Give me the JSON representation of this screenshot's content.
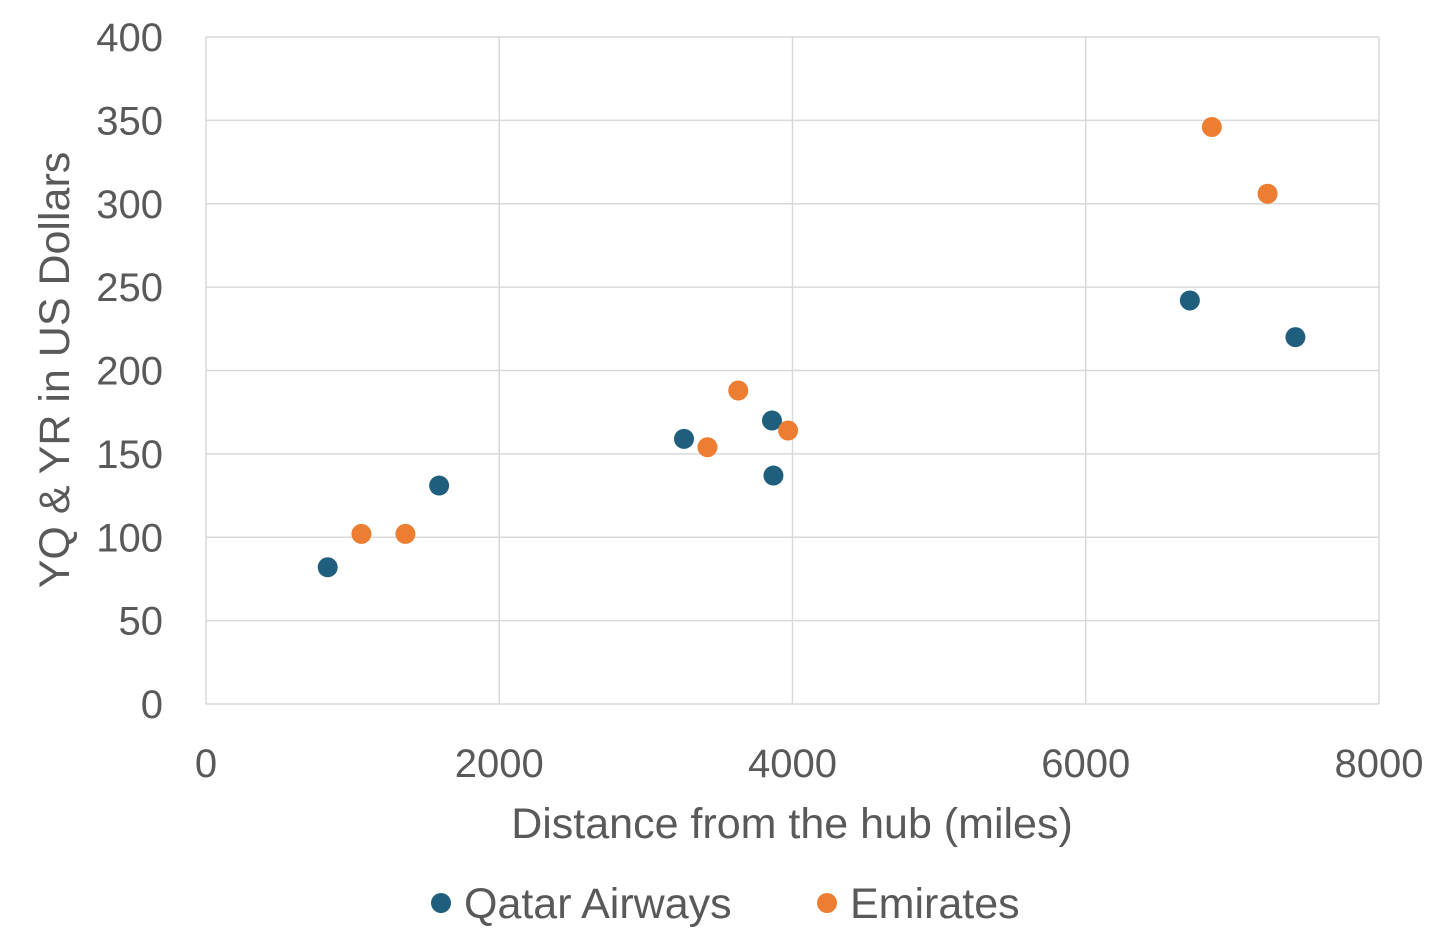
{
  "chart_data": {
    "type": "scatter",
    "title": "",
    "xlabel": "Distance from the hub (miles)",
    "ylabel": "YQ & YR in US Dollars",
    "xlim": [
      0,
      8000
    ],
    "ylim": [
      0,
      400
    ],
    "xticks": [
      0,
      2000,
      4000,
      6000,
      8000
    ],
    "yticks": [
      0,
      50,
      100,
      150,
      200,
      250,
      300,
      350,
      400
    ],
    "grid": true,
    "legend_position": "bottom",
    "series": [
      {
        "name": "Qatar Airways",
        "color": "#1f5f7d",
        "points": [
          {
            "x": 830,
            "y": 82
          },
          {
            "x": 1590,
            "y": 131
          },
          {
            "x": 3260,
            "y": 159
          },
          {
            "x": 3860,
            "y": 170
          },
          {
            "x": 3870,
            "y": 137
          },
          {
            "x": 6710,
            "y": 242
          },
          {
            "x": 7430,
            "y": 220
          }
        ]
      },
      {
        "name": "Emirates",
        "color": "#ed7d31",
        "points": [
          {
            "x": 1060,
            "y": 102
          },
          {
            "x": 1360,
            "y": 102
          },
          {
            "x": 3420,
            "y": 154
          },
          {
            "x": 3630,
            "y": 188
          },
          {
            "x": 3970,
            "y": 164
          },
          {
            "x": 6860,
            "y": 346
          },
          {
            "x": 7240,
            "y": 306
          }
        ]
      }
    ]
  }
}
